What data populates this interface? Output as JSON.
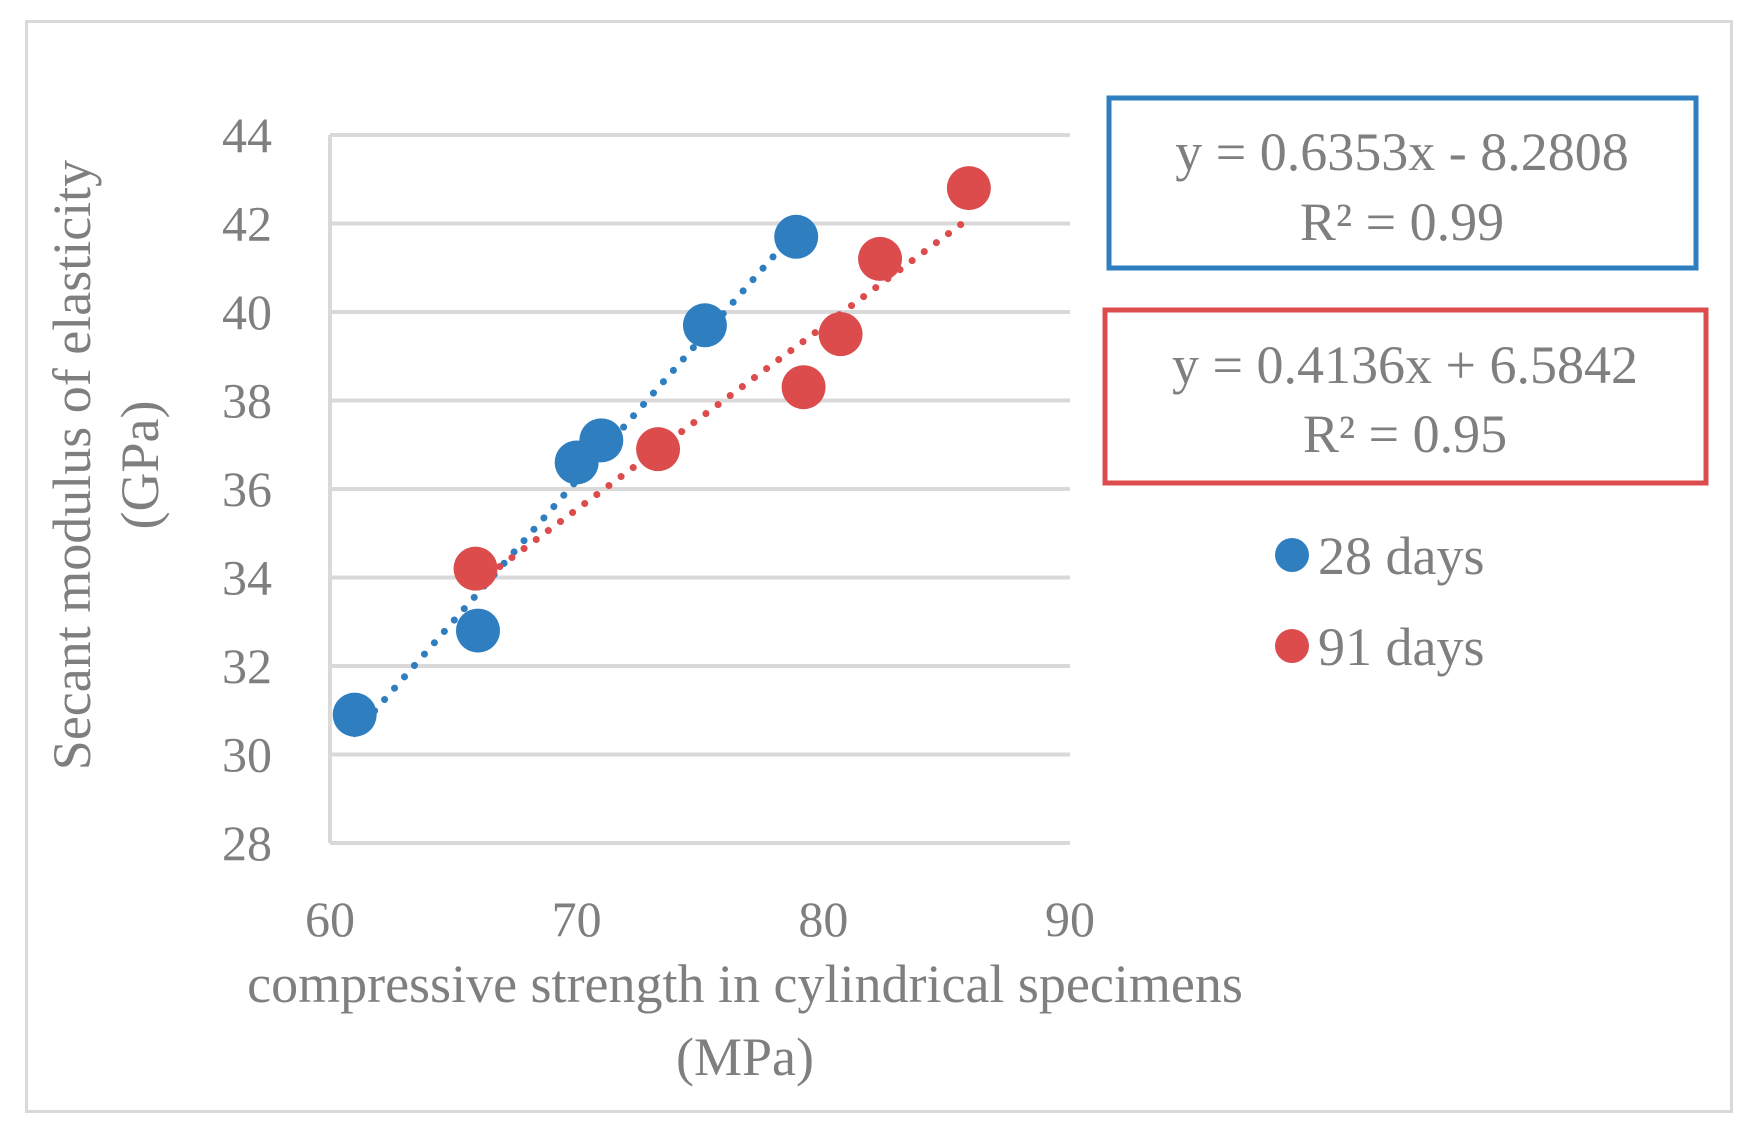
{
  "chart_data": {
    "type": "scatter",
    "title": "",
    "xlabel_lines": [
      "compressive strength in cylindrical specimens",
      "(MPa)"
    ],
    "ylabel_lines": [
      "Secant modulus of elasticity",
      "(GPa)"
    ],
    "xlim": [
      60,
      90
    ],
    "ylim": [
      28,
      44
    ],
    "xticks": [
      60,
      70,
      80,
      90
    ],
    "yticks": [
      28,
      30,
      32,
      34,
      36,
      38,
      40,
      42,
      44
    ],
    "grid": "horizontal",
    "legend_position": "right",
    "series": [
      {
        "name": "28 days",
        "color": "#2e7ec0",
        "x": [
          61.0,
          66.0,
          70.0,
          71.0,
          75.2,
          78.9
        ],
        "y": [
          30.9,
          32.8,
          36.6,
          37.1,
          39.7,
          41.7
        ],
        "trendline": {
          "slope": 0.6353,
          "intercept": -8.2808,
          "x_range": [
            61.0,
            78.9
          ]
        },
        "equation": "y = 0.6353x - 8.2808",
        "r2": "R² = 0.99"
      },
      {
        "name": "91 days",
        "color": "#dc4c4c",
        "x": [
          65.9,
          73.3,
          79.2,
          80.7,
          82.3,
          85.9
        ],
        "y": [
          34.2,
          36.9,
          38.3,
          39.5,
          41.2,
          42.8
        ],
        "trendline": {
          "slope": 0.4136,
          "intercept": 6.5842,
          "x_range": [
            65.9,
            85.9
          ]
        },
        "equation": "y = 0.4136x + 6.5842",
        "r2": "R² = 0.95"
      }
    ]
  }
}
